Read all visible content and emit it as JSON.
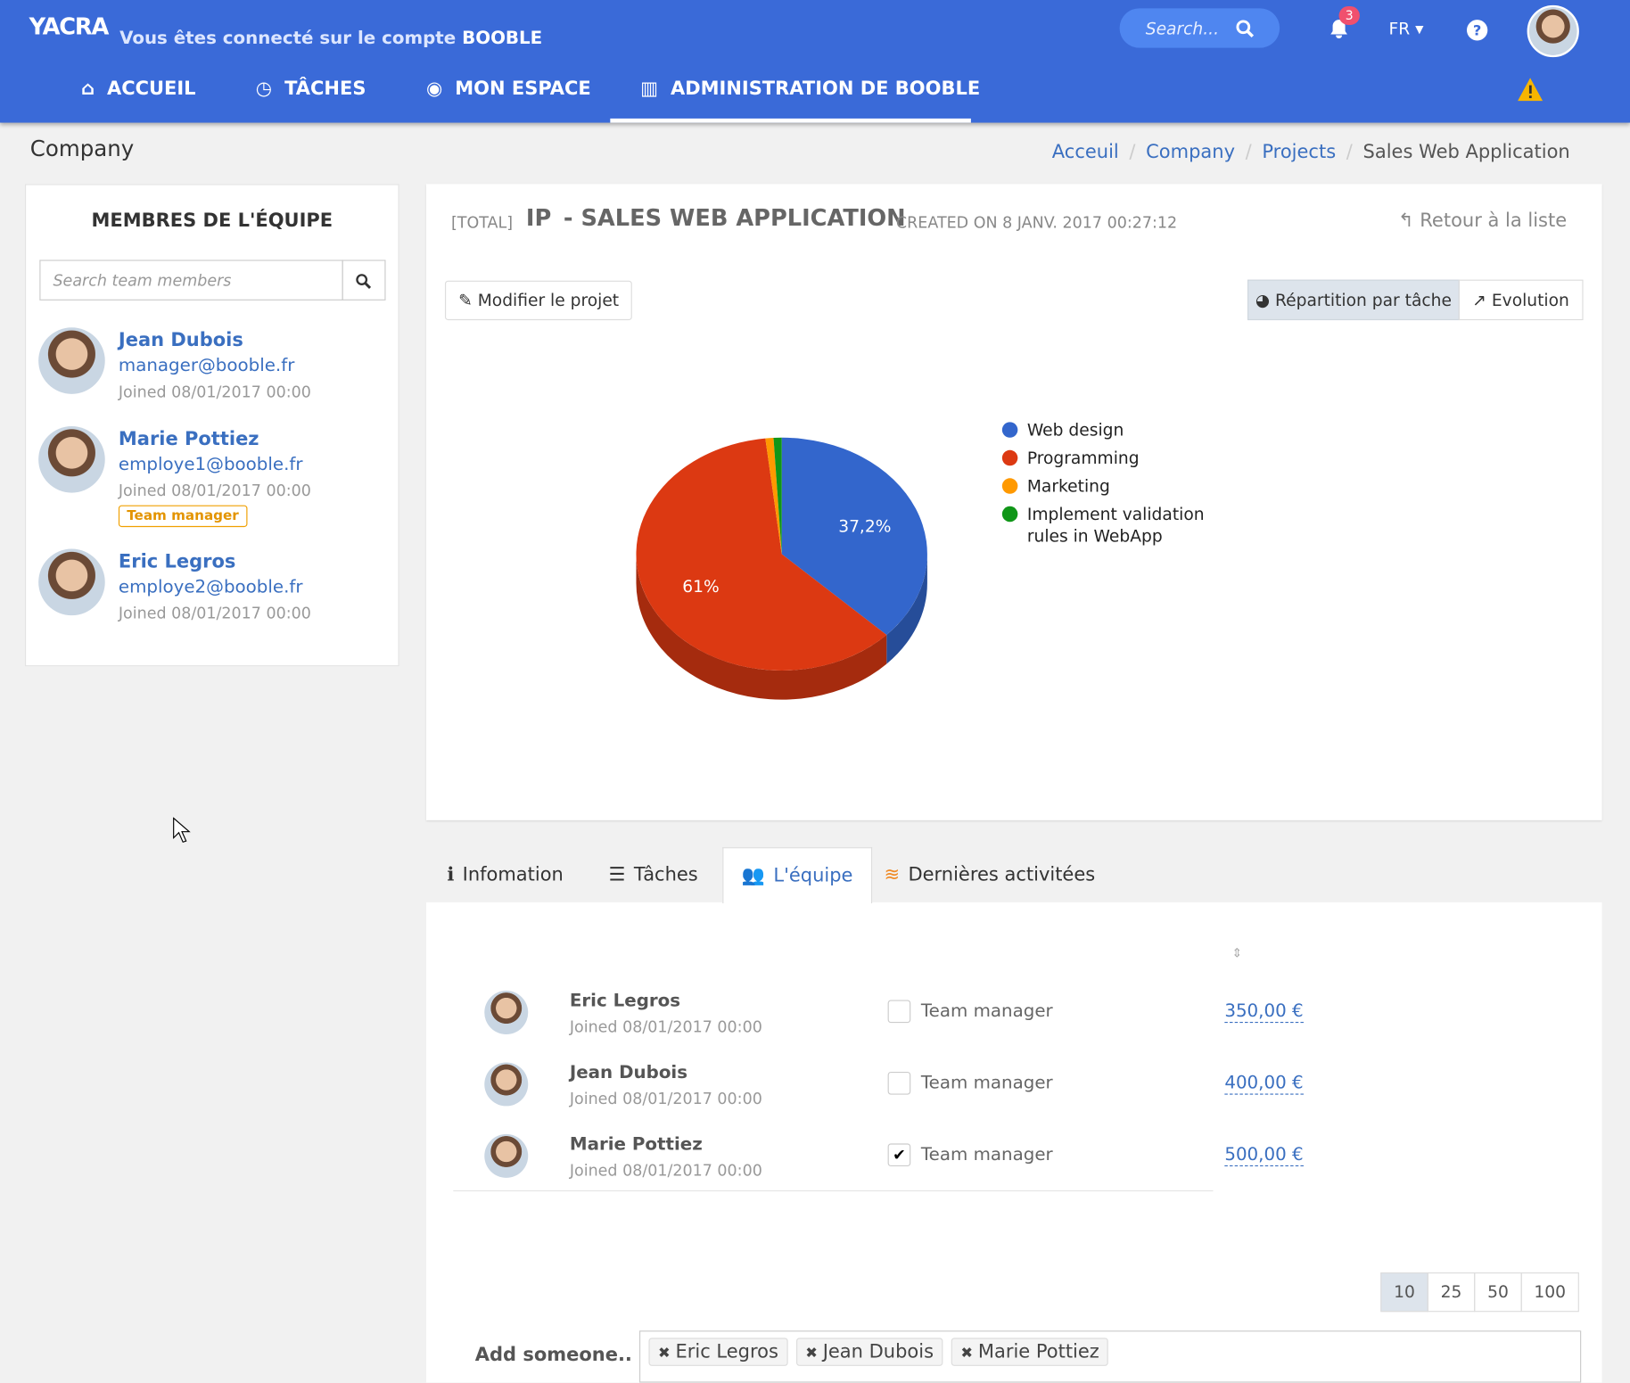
{
  "header": {
    "logo": "YACRA",
    "connected_text": "Vous êtes connecté sur le compte",
    "account": "BOOBLE",
    "search_placeholder": "Search...",
    "notifications": "3",
    "language": "FR"
  },
  "nav": [
    "ACCUEIL",
    "TÂCHES",
    "MON ESPACE",
    "ADMINISTRATION DE BOOBLE"
  ],
  "page_title": "Company",
  "breadcrumb": [
    "Acceuil",
    "Company",
    "Projects",
    "Sales Web Application"
  ],
  "team_panel": {
    "title": "MEMBRES DE L'ÉQUIPE",
    "search_placeholder": "Search team members",
    "members": [
      {
        "name": "Jean Dubois",
        "email": "manager@booble.fr",
        "joined": "Joined 08/01/2017 00:00"
      },
      {
        "name": "Marie Pottiez",
        "email": "employe1@booble.fr",
        "joined": "Joined 08/01/2017 00:00",
        "badge": "Team manager"
      },
      {
        "name": "Eric Legros",
        "email": "employe2@booble.fr",
        "joined": "Joined 08/01/2017 00:00"
      }
    ]
  },
  "project": {
    "tag": "[TOTAL]",
    "code": "IP",
    "name": "- SALES WEB APPLICATION",
    "created": "CREATED ON 8 JANV. 2017 00:27:12",
    "back": "Retour à la liste",
    "edit": "Modifier le projet",
    "views": [
      "Répartition par tâche",
      "Evolution"
    ]
  },
  "chart_data": {
    "type": "pie",
    "categories": [
      "Web design",
      "Programming",
      "Marketing",
      "Implement validation rules in WebApp"
    ],
    "values": [
      37.2,
      61,
      0.9,
      0.9
    ],
    "value_labels": [
      "37,2%",
      "61%",
      null,
      null
    ],
    "colors": [
      "#3366cc",
      "#dc3912",
      "#ff9900",
      "#109618"
    ]
  },
  "tabs": [
    "Infomation",
    "Tâches",
    "L'équipe",
    "Dernières activitées"
  ],
  "team_table": {
    "rows": [
      {
        "name": "Eric Legros",
        "joined": "Joined 08/01/2017 00:00",
        "role": "Team manager",
        "checked": false,
        "amount": "350,00 €"
      },
      {
        "name": "Jean Dubois",
        "joined": "Joined 08/01/2017 00:00",
        "role": "Team manager",
        "checked": false,
        "amount": "400,00 €"
      },
      {
        "name": "Marie Pottiez",
        "joined": "Joined 08/01/2017 00:00",
        "role": "Team manager",
        "checked": true,
        "amount": "500,00 €"
      }
    ],
    "page_sizes": [
      "10",
      "25",
      "50",
      "100"
    ]
  },
  "add_someone": {
    "label": "Add someone..",
    "tags": [
      "Eric Legros",
      "Jean Dubois",
      "Marie Pottiez"
    ]
  }
}
